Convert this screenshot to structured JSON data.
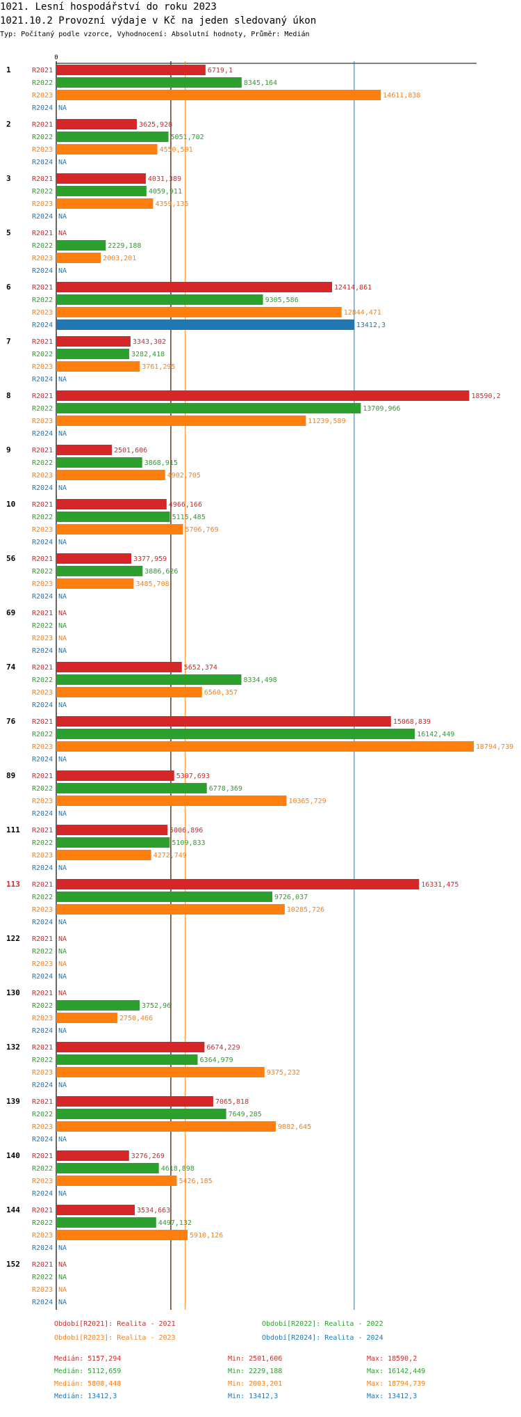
{
  "header": {
    "line1": "1021. Lesní hospodářství do roku 2023",
    "line2": "1021.10.2 Provozní výdaje v Kč na jeden sledovaný úkon",
    "line3": "Typ: Počítaný podle vzorce, Vyhodnocení: Absolutní hodnoty, Průměr: Medián"
  },
  "colors": {
    "R2021": "#d62728",
    "R2022": "#2ca02c",
    "R2023": "#ff7f0e",
    "R2024": "#1f77b4",
    "median_line": "#6b3a10",
    "highlight": "#d62728"
  },
  "chart_data": {
    "type": "bar",
    "orientation": "horizontal",
    "title": "1021.10.2 Provozní výdaje v Kč na jeden sledovaný úkon",
    "xlim": [
      0,
      18794.739
    ],
    "axis_zero_label": "0",
    "na_label": "NA",
    "series_names": [
      "R2021",
      "R2022",
      "R2023",
      "R2024"
    ],
    "highlighted_group": "113",
    "median_lines": [
      {
        "series": "R2021",
        "value": 5157.294
      },
      {
        "series": "R2023",
        "value": 5808.448
      },
      {
        "series": "R2024",
        "value": 13412.3
      }
    ],
    "groups": [
      {
        "name": "1",
        "values": [
          6719.1,
          8345.164,
          14611.838,
          null
        ],
        "labels": [
          "6719,1",
          "8345,164",
          "14611,838",
          "NA"
        ]
      },
      {
        "name": "2",
        "values": [
          3625.928,
          5051.702,
          4550.501,
          null
        ],
        "labels": [
          "3625,928",
          "5051,702",
          "4550,501",
          "NA"
        ]
      },
      {
        "name": "3",
        "values": [
          4031.389,
          4059.911,
          4359.135,
          null
        ],
        "labels": [
          "4031,389",
          "4059,911",
          "4359,135",
          "NA"
        ]
      },
      {
        "name": "5",
        "values": [
          null,
          2229.188,
          2003.201,
          null
        ],
        "labels": [
          "NA",
          "2229,188",
          "2003,201",
          "NA"
        ]
      },
      {
        "name": "6",
        "values": [
          12414.861,
          9305.586,
          12844.471,
          13412.3
        ],
        "labels": [
          "12414,861",
          "9305,586",
          "12844,471",
          "13412,3"
        ]
      },
      {
        "name": "7",
        "values": [
          3343.302,
          3282.418,
          3761.295,
          null
        ],
        "labels": [
          "3343,302",
          "3282,418",
          "3761,295",
          "NA"
        ]
      },
      {
        "name": "8",
        "values": [
          18590.2,
          13709.966,
          11239.589,
          null
        ],
        "labels": [
          "18590,2",
          "13709,966",
          "11239,589",
          "NA"
        ]
      },
      {
        "name": "9",
        "values": [
          2501.606,
          3868.915,
          4902.705,
          null
        ],
        "labels": [
          "2501,606",
          "3868,915",
          "4902,705",
          "NA"
        ]
      },
      {
        "name": "10",
        "values": [
          4966.166,
          5115.485,
          5706.769,
          null
        ],
        "labels": [
          "4966,166",
          "5115,485",
          "5706,769",
          "NA"
        ]
      },
      {
        "name": "56",
        "values": [
          3377.959,
          3886.626,
          3485.708,
          null
        ],
        "labels": [
          "3377,959",
          "3886,626",
          "3485,708",
          "NA"
        ]
      },
      {
        "name": "69",
        "values": [
          null,
          null,
          null,
          null
        ],
        "labels": [
          "NA",
          "NA",
          "NA",
          "NA"
        ]
      },
      {
        "name": "74",
        "values": [
          5652.374,
          8334.498,
          6560.357,
          null
        ],
        "labels": [
          "5652,374",
          "8334,498",
          "6560,357",
          "NA"
        ]
      },
      {
        "name": "76",
        "values": [
          15068.839,
          16142.449,
          18794.739,
          null
        ],
        "labels": [
          "15068,839",
          "16142,449",
          "18794,739",
          "NA"
        ]
      },
      {
        "name": "89",
        "values": [
          5307.693,
          6778.369,
          10365.729,
          null
        ],
        "labels": [
          "5307,693",
          "6778,369",
          "10365,729",
          "NA"
        ]
      },
      {
        "name": "111",
        "values": [
          5006.896,
          5109.833,
          4272.749,
          null
        ],
        "labels": [
          "5006,896",
          "5109,833",
          "4272,749",
          "NA"
        ]
      },
      {
        "name": "113",
        "values": [
          16331.475,
          9726.037,
          10285.726,
          null
        ],
        "labels": [
          "16331,475",
          "9726,037",
          "10285,726",
          "NA"
        ]
      },
      {
        "name": "122",
        "values": [
          null,
          null,
          null,
          null
        ],
        "labels": [
          "NA",
          "NA",
          "NA",
          "NA"
        ]
      },
      {
        "name": "130",
        "values": [
          null,
          3752.96,
          2750.466,
          null
        ],
        "labels": [
          "NA",
          "3752,96",
          "2750,466",
          "NA"
        ]
      },
      {
        "name": "132",
        "values": [
          6674.229,
          6364.979,
          9375.232,
          null
        ],
        "labels": [
          "6674,229",
          "6364,979",
          "9375,232",
          "NA"
        ]
      },
      {
        "name": "139",
        "values": [
          7065.818,
          7649.285,
          9882.645,
          null
        ],
        "labels": [
          "7065,818",
          "7649,285",
          "9882,645",
          "NA"
        ]
      },
      {
        "name": "140",
        "values": [
          3276.269,
          4618.898,
          5426.185,
          null
        ],
        "labels": [
          "3276,269",
          "4618,898",
          "5426,185",
          "NA"
        ]
      },
      {
        "name": "144",
        "values": [
          3534.663,
          4497.132,
          5910.126,
          null
        ],
        "labels": [
          "3534,663",
          "4497,132",
          "5910,126",
          "NA"
        ]
      },
      {
        "name": "152",
        "values": [
          null,
          null,
          null,
          null
        ],
        "labels": [
          "NA",
          "NA",
          "NA",
          "NA"
        ]
      }
    ],
    "legend": [
      {
        "series": "R2021",
        "text": "Období[R2021]: Realita - 2021"
      },
      {
        "series": "R2022",
        "text": "Období[R2022]: Realita - 2022"
      },
      {
        "series": "R2023",
        "text": "Období[R2023]: Realita - 2023"
      },
      {
        "series": "R2024",
        "text": "Období[R2024]: Realita - 2024"
      }
    ],
    "stats": [
      {
        "series": "R2021",
        "median": "Medián: 5157,294",
        "min": "Min: 2501,606",
        "max": "Max: 18590,2"
      },
      {
        "series": "R2022",
        "median": "Medián: 5112,659",
        "min": "Min: 2229,188",
        "max": "Max: 16142,449"
      },
      {
        "series": "R2023",
        "median": "Medián: 5808,448",
        "min": "Min: 2003,201",
        "max": "Max: 18794,739"
      },
      {
        "series": "R2024",
        "median": "Medián: 13412,3",
        "min": "Min: 13412,3",
        "max": "Max: 13412,3"
      }
    ]
  }
}
